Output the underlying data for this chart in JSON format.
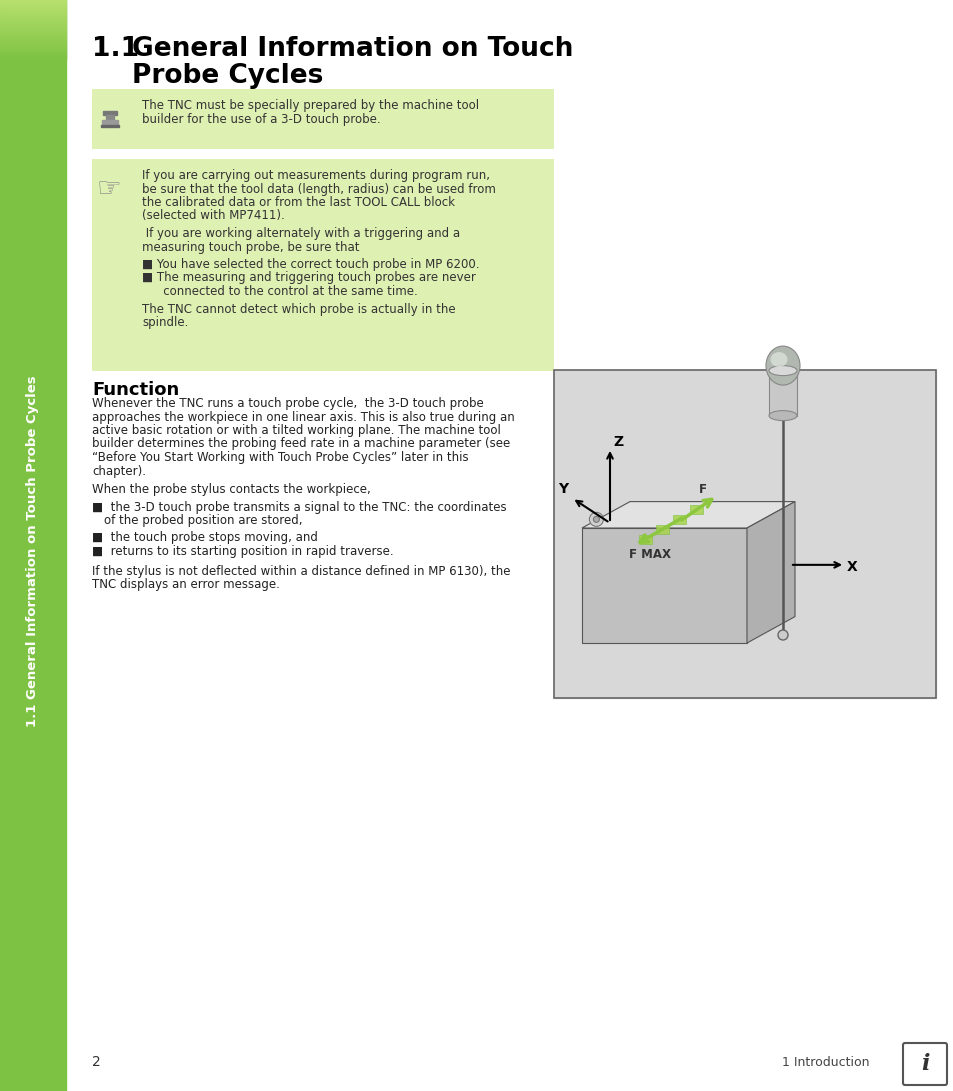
{
  "page_bg": "#ffffff",
  "sidebar_bg": "#7dc242",
  "sidebar_text": "1.1 General Information on Touch Probe Cycles",
  "sidebar_text_color": "#ffffff",
  "box1_bg": "#dff0b3",
  "box2_bg": "#dff0b3",
  "box1_text_line1": "The TNC must be specially prepared by the machine tool",
  "box1_text_line2": "builder for the use of a 3-D touch probe.",
  "box2_text_para1_l1": "If you are carrying out measurements during program run,",
  "box2_text_para1_l2": "be sure that the tool data (length, radius) can be used from",
  "box2_text_para1_l3": "the calibrated data or from the last TOOL CALL block",
  "box2_text_para1_l4": "(selected with MP7411).",
  "box2_text_para2_l1": " If you are working alternately with a triggering and a",
  "box2_text_para2_l2": "measuring touch probe, be sure that",
  "box2_bullet1": "You have selected the correct touch probe in MP 6200.",
  "box2_bullet2_l1": "The measuring and triggering touch probes are never",
  "box2_bullet2_l2": "   connected to the control at the same time.",
  "box2_footer_l1": "The TNC cannot detect which probe is actually in the",
  "box2_footer_l2": "spindle.",
  "section_title": "Function",
  "body_l1": "Whenever the TNC runs a touch probe cycle,  the 3-D touch probe",
  "body_l2": "approaches the workpiece in one linear axis. This is also true during an",
  "body_l3": "active basic rotation or with a tilted working plane. The machine tool",
  "body_l4": "builder determines the probing feed rate in a machine parameter (see",
  "body_l5": "“Before You Start Working with Touch Probe Cycles” later in this",
  "body_l6": "chapter).",
  "body2": "When the probe stylus contacts the workpiece,",
  "bul1_l1": "the 3-D touch probe transmits a signal to the TNC: the coordinates",
  "bul1_l2": "of the probed position are stored,",
  "bul2": "the touch probe stops moving, and",
  "bul3": "returns to its starting position in rapid traverse.",
  "body3_l1": "If the stylus is not deflected within a distance defined in MP 6130), the",
  "body3_l2": "TNC displays an error message.",
  "page_num": "2",
  "footer_right": "1 Introduction",
  "diagram_bg": "#d4d4d4",
  "font_color": "#333333"
}
